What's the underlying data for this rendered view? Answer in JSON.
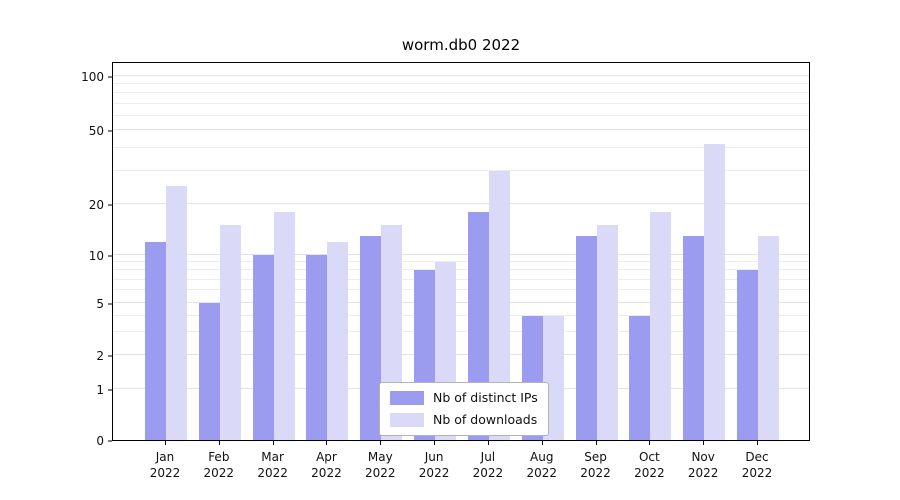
{
  "chart_data": {
    "type": "bar",
    "title": "worm.db0 2022",
    "categories": [
      "Jan",
      "Feb",
      "Mar",
      "Apr",
      "May",
      "Jun",
      "Jul",
      "Aug",
      "Sep",
      "Oct",
      "Nov",
      "Dec"
    ],
    "year_label": "2022",
    "series": [
      {
        "name": "Nb of distinct IPs",
        "color": "#9b9bf0",
        "values": [
          12,
          5,
          10,
          10,
          13,
          8,
          18,
          4,
          13,
          4,
          13,
          8
        ]
      },
      {
        "name": "Nb of downloads",
        "color": "#dadaf8",
        "values": [
          25,
          15,
          18,
          12,
          15,
          9,
          30,
          4,
          15,
          18,
          42,
          13
        ]
      }
    ],
    "scale": "symlog",
    "yticks": [
      0,
      1,
      2,
      5,
      10,
      20,
      50,
      100
    ],
    "minor_yticks": [
      3,
      4,
      6,
      7,
      8,
      9,
      30,
      40,
      60,
      70,
      80,
      90
    ],
    "ylim": [
      0,
      110
    ],
    "grid": true,
    "legend_position": "bottom-center"
  }
}
